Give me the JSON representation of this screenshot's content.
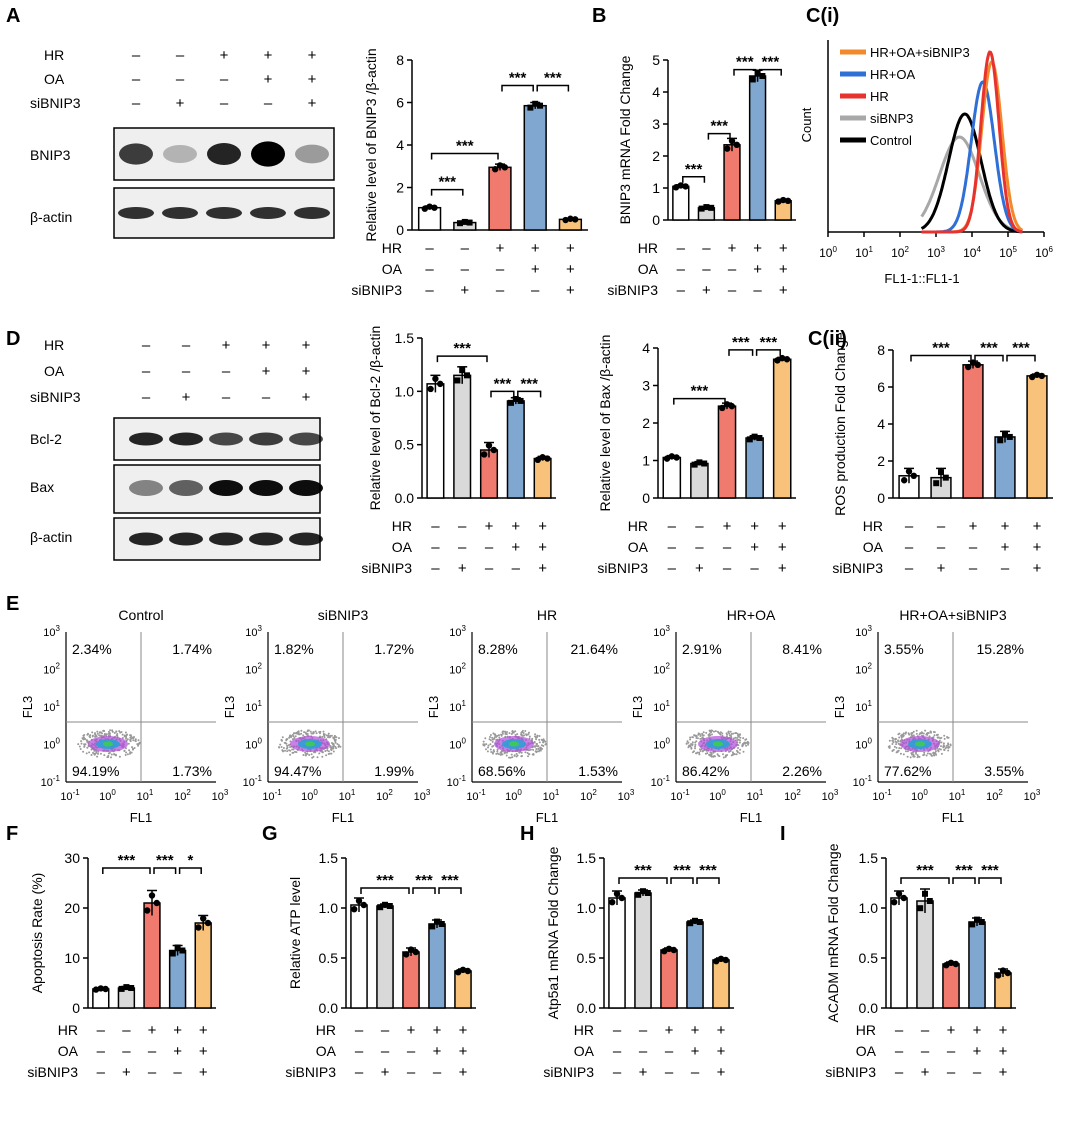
{
  "colors": {
    "white": "#ffffff",
    "gray": "#d9d9d9",
    "red": "#f07a6e",
    "blue": "#7fa7cf",
    "orange": "#f8c27a",
    "c_orange": "#f28a2b",
    "c_blue": "#2f6fd6",
    "c_red": "#e8322d",
    "c_gray": "#a8a8a8",
    "c_black": "#000000"
  },
  "groups": {
    "hr": "HR",
    "oa": "OA",
    "si": "siBNIP3",
    "rows": {
      "hr": [
        "–",
        "–",
        "+",
        "+",
        "+"
      ],
      "oa": [
        "–",
        "–",
        "–",
        "+",
        "+"
      ],
      "si": [
        "–",
        "+",
        "–",
        "–",
        "+"
      ]
    }
  },
  "panels": {
    "A": "A",
    "B": "B",
    "Ci": "C(i)",
    "Cii": "C(ii)",
    "D": "D",
    "E": "E",
    "F": "F",
    "G": "G",
    "H": "H",
    "I": "I"
  },
  "blots": {
    "A": {
      "labels": [
        "BNIP3",
        "β-actin"
      ]
    },
    "D": {
      "labels": [
        "Bcl-2",
        "Bax",
        "β-actin"
      ]
    }
  },
  "flow_hist": {
    "xlabel": "FL1-1::FL1-1",
    "ylabel": "Count",
    "ticks": [
      "10",
      "0",
      "10",
      "1",
      "10",
      "2",
      "10",
      "3",
      "10",
      "4",
      "10",
      "5",
      "10",
      "6"
    ],
    "legend": [
      "HR+OA+siBNIP3",
      "HR+OA",
      "HR",
      "siBNP3",
      "Control"
    ],
    "peaks_log10": [
      4.55,
      4.3,
      4.5,
      3.65,
      3.8
    ]
  },
  "scatter": {
    "xlabel": "FL1",
    "ylabel": "FL3",
    "panels": [
      {
        "title": "Control",
        "ul": "2.34%",
        "ur": "1.74%",
        "ll": "94.19%",
        "lr": "1.73%"
      },
      {
        "title": "siBNIP3",
        "ul": "1.82%",
        "ur": "1.72%",
        "ll": "94.47%",
        "lr": "1.99%"
      },
      {
        "title": "HR",
        "ul": "8.28%",
        "ur": "21.64%",
        "ll": "68.56%",
        "lr": "1.53%"
      },
      {
        "title": "HR+OA",
        "ul": "2.91%",
        "ur": "8.41%",
        "ll": "86.42%",
        "lr": "2.26%"
      },
      {
        "title": "HR+OA+siBNIP3",
        "ul": "3.55%",
        "ur": "15.28%",
        "ll": "77.62%",
        "lr": "3.55%"
      }
    ],
    "tick_bases": [
      "10",
      "10",
      "10",
      "10",
      "10"
    ],
    "tick_exps": [
      "-1",
      "0",
      "1",
      "2",
      "3"
    ]
  },
  "chart_data": [
    {
      "id": "A",
      "type": "bar",
      "ylabel": "Relative level of BNIP3 /β-actin",
      "ylim": [
        0,
        8
      ],
      "yticks": [
        "0",
        "2",
        "4",
        "6",
        "8"
      ],
      "values": [
        1.05,
        0.35,
        2.95,
        5.85,
        0.5
      ],
      "errors": [
        0.08,
        0.05,
        0.15,
        0.15,
        0.05
      ],
      "sig": [
        {
          "a": 0,
          "b": 1,
          "label": "***",
          "level": 1.9
        },
        {
          "a": 0,
          "b": 2,
          "label": "***",
          "level": 3.6
        },
        {
          "a": 2,
          "b": 3,
          "label": "***",
          "level": 6.8
        },
        {
          "a": 3,
          "b": 4,
          "label": "***",
          "level": 6.8
        }
      ]
    },
    {
      "id": "B",
      "type": "bar",
      "ylabel": "BNIP3 mRNA Fold Change",
      "ylim": [
        0,
        5
      ],
      "yticks": [
        "0",
        "1",
        "2",
        "3",
        "4",
        "5"
      ],
      "values": [
        1.05,
        0.38,
        2.35,
        4.5,
        0.6
      ],
      "errors": [
        0.05,
        0.04,
        0.2,
        0.18,
        0.04
      ],
      "sig": [
        {
          "a": 0,
          "b": 1,
          "label": "***",
          "level": 1.35
        },
        {
          "a": 1,
          "b": 2,
          "label": "***",
          "level": 2.7
        },
        {
          "a": 2,
          "b": 3,
          "label": "***",
          "level": 4.7
        },
        {
          "a": 3,
          "b": 4,
          "label": "***",
          "level": 4.7
        }
      ]
    },
    {
      "id": "Cii",
      "type": "bar",
      "ylabel": "ROS production Fold Change",
      "ylim": [
        0,
        8
      ],
      "yticks": [
        "0",
        "2",
        "4",
        "6",
        "8"
      ],
      "values": [
        1.2,
        1.1,
        7.2,
        3.3,
        6.6
      ],
      "errors": [
        0.4,
        0.5,
        0.2,
        0.3,
        0.1
      ],
      "sig": [
        {
          "a": 0,
          "b": 2,
          "label": "***",
          "level": 7.7
        },
        {
          "a": 2,
          "b": 3,
          "label": "***",
          "level": 7.7
        },
        {
          "a": 3,
          "b": 4,
          "label": "***",
          "level": 7.7
        }
      ]
    },
    {
      "id": "D1",
      "type": "bar",
      "ylabel": "Relative level of Bcl-2 /β-actin",
      "ylim": [
        0,
        1.5
      ],
      "yticks": [
        "0.0",
        "0.5",
        "1.0",
        "1.5"
      ],
      "values": [
        1.07,
        1.15,
        0.45,
        0.91,
        0.37
      ],
      "errors": [
        0.08,
        0.08,
        0.07,
        0.03,
        0.02
      ],
      "sig": [
        {
          "a": 0,
          "b": 2,
          "label": "***",
          "level": 1.33
        },
        {
          "a": 2,
          "b": 3,
          "label": "***",
          "level": 1.0
        },
        {
          "a": 3,
          "b": 4,
          "label": "***",
          "level": 1.0
        }
      ]
    },
    {
      "id": "D2",
      "type": "bar",
      "ylabel": "Relative level of Bax /β-actin",
      "ylim": [
        0,
        4
      ],
      "yticks": [
        "0",
        "1",
        "2",
        "3",
        "4"
      ],
      "values": [
        1.08,
        0.92,
        2.45,
        1.6,
        3.7
      ],
      "errors": [
        0.05,
        0.05,
        0.08,
        0.06,
        0.05
      ],
      "sig": [
        {
          "a": 0,
          "b": 2,
          "label": "***",
          "level": 2.65
        },
        {
          "a": 2,
          "b": 3,
          "label": "***",
          "level": 3.95
        },
        {
          "a": 3,
          "b": 4,
          "label": "***",
          "level": 3.95
        }
      ]
    },
    {
      "id": "F",
      "type": "bar",
      "ylabel": "Apoptosis Rate (%)",
      "ylim": [
        0,
        30
      ],
      "yticks": [
        "0",
        "10",
        "20",
        "30"
      ],
      "values": [
        3.8,
        4.0,
        21.0,
        11.5,
        17.0
      ],
      "errors": [
        0.2,
        0.3,
        2.5,
        1.0,
        1.5
      ],
      "sig": [
        {
          "a": 0,
          "b": 2,
          "label": "***",
          "level": 28
        },
        {
          "a": 2,
          "b": 3,
          "label": "***",
          "level": 28
        },
        {
          "a": 3,
          "b": 4,
          "label": "*",
          "level": 28
        }
      ]
    },
    {
      "id": "G",
      "type": "bar",
      "ylabel": "Relative ATP level",
      "ylim": [
        0,
        1.5
      ],
      "yticks": [
        "0.0",
        "0.5",
        "1.0",
        "1.5"
      ],
      "values": [
        1.03,
        1.02,
        0.56,
        0.84,
        0.37
      ],
      "errors": [
        0.07,
        0.02,
        0.04,
        0.04,
        0.02
      ],
      "sig": [
        {
          "a": 0,
          "b": 2,
          "label": "***",
          "level": 1.2
        },
        {
          "a": 2,
          "b": 3,
          "label": "***",
          "level": 1.2
        },
        {
          "a": 3,
          "b": 4,
          "label": "***",
          "level": 1.2
        }
      ]
    },
    {
      "id": "H",
      "type": "bar",
      "ylabel": "Atp5a1 mRNA Fold Change",
      "ylim": [
        0,
        1.5
      ],
      "yticks": [
        "0.0",
        "0.5",
        "1.0",
        "1.5"
      ],
      "values": [
        1.1,
        1.15,
        0.58,
        0.86,
        0.48
      ],
      "errors": [
        0.07,
        0.03,
        0.02,
        0.02,
        0.02
      ],
      "sig": [
        {
          "a": 0,
          "b": 2,
          "label": "***",
          "level": 1.3
        },
        {
          "a": 2,
          "b": 3,
          "label": "***",
          "level": 1.3
        },
        {
          "a": 3,
          "b": 4,
          "label": "***",
          "level": 1.3
        }
      ]
    },
    {
      "id": "I",
      "type": "bar",
      "ylabel": "ACADM mRNA Fold Change",
      "ylim": [
        0,
        1.5
      ],
      "yticks": [
        "0.0",
        "0.5",
        "1.0",
        "1.5"
      ],
      "values": [
        1.1,
        1.07,
        0.44,
        0.86,
        0.35
      ],
      "errors": [
        0.07,
        0.12,
        0.02,
        0.04,
        0.04
      ],
      "sig": [
        {
          "a": 0,
          "b": 2,
          "label": "***",
          "level": 1.3
        },
        {
          "a": 2,
          "b": 3,
          "label": "***",
          "level": 1.3
        },
        {
          "a": 3,
          "b": 4,
          "label": "***",
          "level": 1.3
        }
      ]
    }
  ]
}
